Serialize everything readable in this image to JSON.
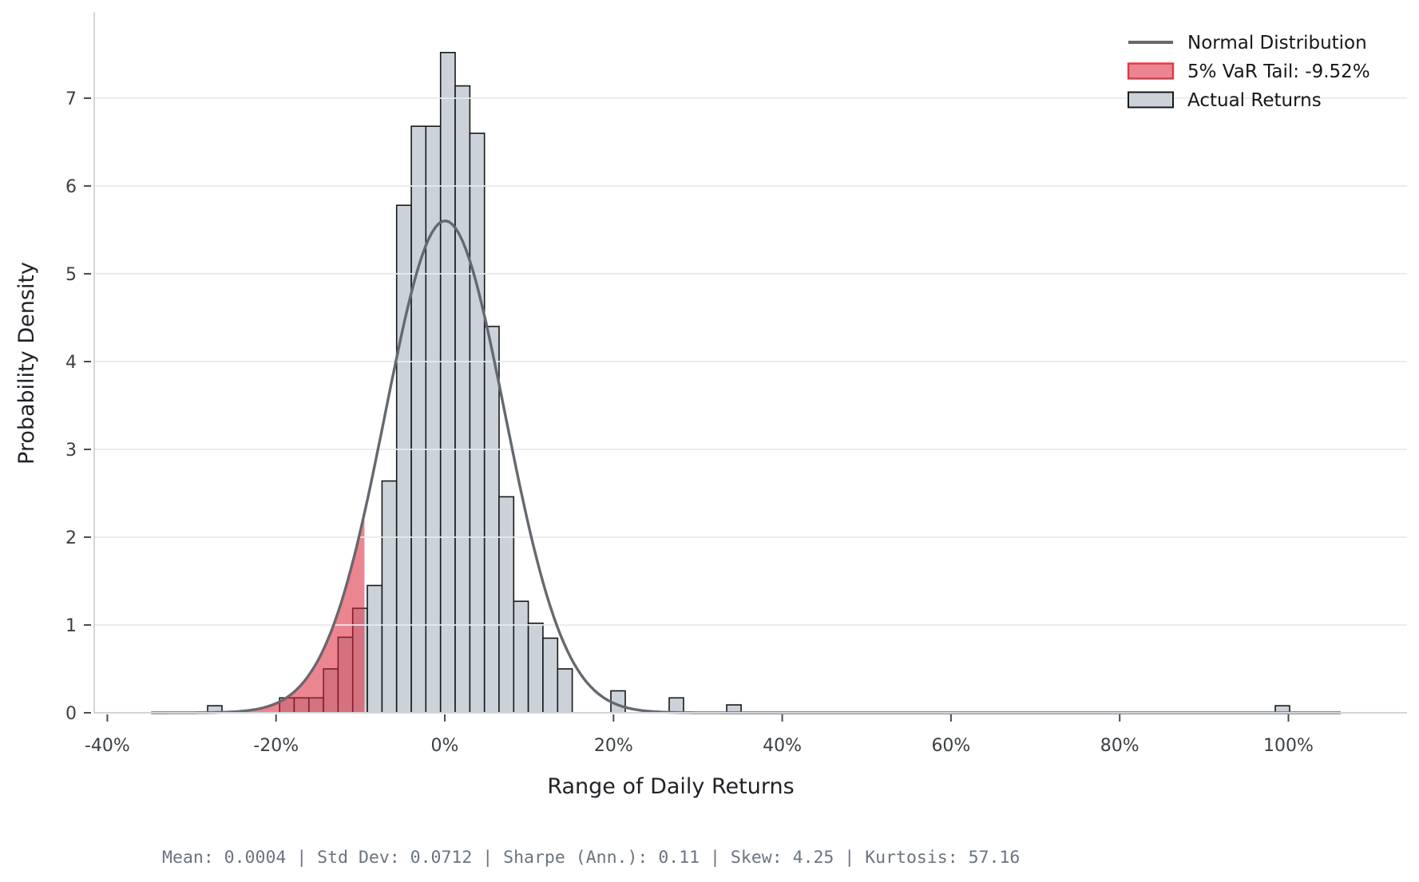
{
  "chart_data": {
    "type": "bar",
    "subtype": "histogram-with-normal-overlay",
    "title": "",
    "xlabel": "Range of Daily Returns",
    "ylabel": "Probability Density",
    "x_unit": "percent_daily_return",
    "xlim": [
      -41.55,
      114.05
    ],
    "ylim": [
      0,
      7.95
    ],
    "grid": "horizontal",
    "x_ticks": [
      {
        "value": -40,
        "label": "-40%"
      },
      {
        "value": -20,
        "label": "-20%"
      },
      {
        "value": 0,
        "label": "0%"
      },
      {
        "value": 20,
        "label": "20%"
      },
      {
        "value": 40,
        "label": "40%"
      },
      {
        "value": 60,
        "label": "60%"
      },
      {
        "value": 80,
        "label": "80%"
      },
      {
        "value": 100,
        "label": "100%"
      }
    ],
    "y_ticks": [
      {
        "value": 0,
        "label": "0"
      },
      {
        "value": 1,
        "label": "1"
      },
      {
        "value": 2,
        "label": "2"
      },
      {
        "value": 3,
        "label": "3"
      },
      {
        "value": 4,
        "label": "4"
      },
      {
        "value": 5,
        "label": "5"
      },
      {
        "value": 6,
        "label": "6"
      },
      {
        "value": 7,
        "label": "7"
      }
    ],
    "bars": [
      {
        "from": -28.11,
        "to": -26.41,
        "density": 0.08
      },
      {
        "from": -19.58,
        "to": -17.85,
        "density": 0.17
      },
      {
        "from": -17.85,
        "to": -16.11,
        "density": 0.17
      },
      {
        "from": -16.11,
        "to": -14.38,
        "density": 0.17
      },
      {
        "from": -14.38,
        "to": -12.65,
        "density": 0.5
      },
      {
        "from": -12.65,
        "to": -10.91,
        "density": 0.86
      },
      {
        "from": -10.91,
        "to": -9.18,
        "density": 1.19
      },
      {
        "from": -9.18,
        "to": -7.44,
        "density": 1.45
      },
      {
        "from": -7.44,
        "to": -5.71,
        "density": 2.64
      },
      {
        "from": -5.71,
        "to": -3.97,
        "density": 5.78
      },
      {
        "from": -3.97,
        "to": -2.24,
        "density": 6.68
      },
      {
        "from": -2.24,
        "to": -0.5,
        "density": 6.68
      },
      {
        "from": -0.5,
        "to": 1.23,
        "density": 7.52
      },
      {
        "from": 1.23,
        "to": 2.97,
        "density": 7.14
      },
      {
        "from": 2.97,
        "to": 4.7,
        "density": 6.6
      },
      {
        "from": 4.7,
        "to": 6.43,
        "density": 4.4
      },
      {
        "from": 6.43,
        "to": 8.17,
        "density": 2.46
      },
      {
        "from": 8.17,
        "to": 9.9,
        "density": 1.27
      },
      {
        "from": 9.9,
        "to": 11.63,
        "density": 1.02
      },
      {
        "from": 11.63,
        "to": 13.37,
        "density": 0.85
      },
      {
        "from": 13.37,
        "to": 15.1,
        "density": 0.5
      },
      {
        "from": 19.69,
        "to": 21.39,
        "density": 0.25
      },
      {
        "from": 26.6,
        "to": 28.3,
        "density": 0.17
      },
      {
        "from": 33.41,
        "to": 35.12,
        "density": 0.09
      },
      {
        "from": 98.44,
        "to": 100.14,
        "density": 0.08
      }
    ],
    "normal_curve": {
      "mean_pct": 0.04,
      "std_pct": 7.12,
      "peak_density": 5.6,
      "range_pct": [
        -34.7,
        106.5
      ]
    },
    "var_tail": {
      "threshold_pct": -9.52,
      "confidence": "5%"
    },
    "legend": [
      {
        "swatch": "line",
        "label": "Normal Distribution"
      },
      {
        "swatch": "patch-red",
        "label": "5% VaR Tail: -9.52%"
      },
      {
        "swatch": "patch-gray",
        "label": "Actual Returns"
      }
    ],
    "footer": {
      "separator": "|",
      "items": [
        {
          "label": "Mean:",
          "value": "0.0004"
        },
        {
          "label": "Std Dev:",
          "value": "0.0712"
        },
        {
          "label": "Sharpe (Ann.):",
          "value": "0.11"
        },
        {
          "label": "Skew:",
          "value": "4.25"
        },
        {
          "label": "Kurtosis:",
          "value": "57.16"
        }
      ]
    }
  },
  "colors": {
    "background": "#ffffff",
    "bar_fill": "#ccd2da",
    "bar_edge": "#17191a",
    "curve": "#65696f",
    "tail_red": "#db2335",
    "tail_alpha": 0.55,
    "grid": "#e7e9ec",
    "spine": "#d2d5d9",
    "tick_mark": "#4a4d52",
    "tick_label": "#3c4043",
    "footer_text": "#6b7480"
  }
}
